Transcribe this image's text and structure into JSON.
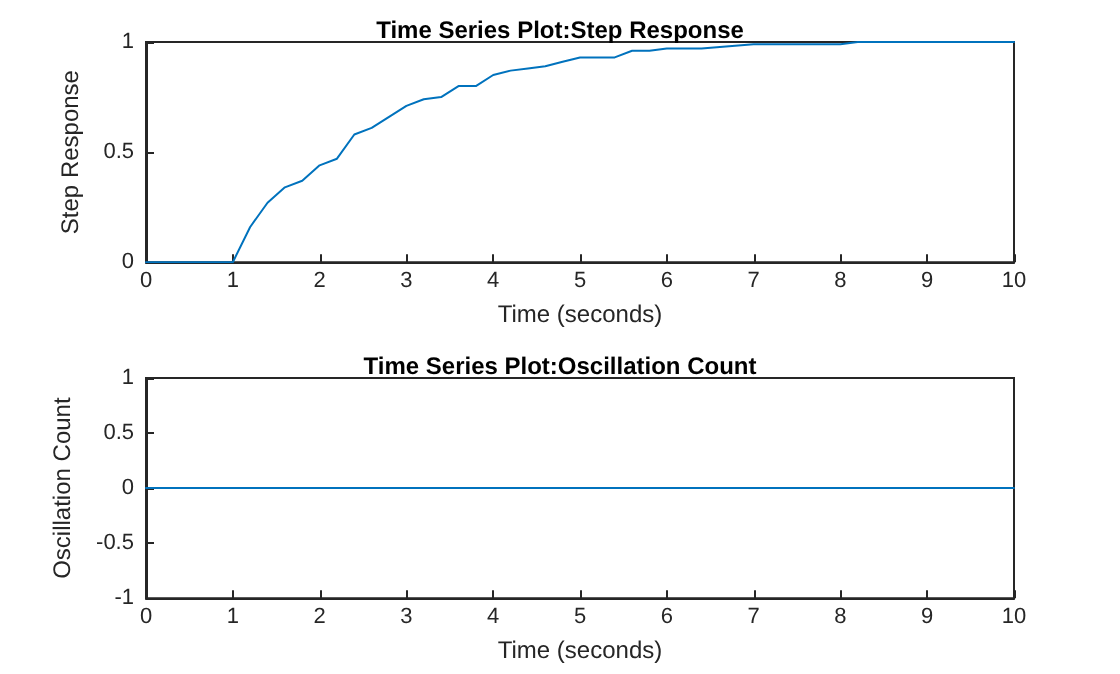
{
  "chart_data": [
    {
      "type": "line",
      "title": "Time Series Plot:Step Response",
      "xlabel": "Time (seconds)",
      "ylabel": "Step Response",
      "x": [
        0,
        1,
        1.2,
        1.4,
        1.6,
        1.8,
        2,
        2.2,
        2.4,
        2.6,
        2.8,
        3,
        3.2,
        3.4,
        3.6,
        3.8,
        4,
        4.2,
        4.4,
        4.6,
        4.8,
        5,
        5.4,
        5.6,
        5.8,
        6,
        6.4,
        7,
        8,
        8.2,
        9,
        10
      ],
      "series": [
        {
          "color": "#0072bd",
          "values": [
            0,
            0,
            0.16,
            0.27,
            0.34,
            0.37,
            0.44,
            0.47,
            0.58,
            0.61,
            0.66,
            0.71,
            0.74,
            0.75,
            0.8,
            0.8,
            0.85,
            0.87,
            0.88,
            0.89,
            0.91,
            0.93,
            0.93,
            0.96,
            0.96,
            0.97,
            0.97,
            0.99,
            0.99,
            1,
            1,
            1
          ]
        }
      ],
      "xlim": [
        0,
        10
      ],
      "xticks": [
        0,
        1,
        2,
        3,
        4,
        5,
        6,
        7,
        8,
        9,
        10
      ],
      "ylim": [
        0,
        1
      ],
      "yticks": [
        0,
        0.5,
        1
      ],
      "grid": false,
      "marker": "none",
      "line_style": "solid"
    },
    {
      "type": "line",
      "title": "Time Series Plot:Oscillation Count",
      "xlabel": "Time (seconds)",
      "ylabel": "Oscillation Count",
      "x": [
        0,
        10
      ],
      "series": [
        {
          "color": "#0072bd",
          "values": [
            0,
            0
          ]
        }
      ],
      "xlim": [
        0,
        10
      ],
      "xticks": [
        0,
        1,
        2,
        3,
        4,
        5,
        6,
        7,
        8,
        9,
        10
      ],
      "ylim": [
        -1,
        1
      ],
      "yticks": [
        -1,
        -0.5,
        0,
        0.5,
        1
      ],
      "grid": false,
      "marker": "none",
      "line_style": "solid"
    }
  ]
}
